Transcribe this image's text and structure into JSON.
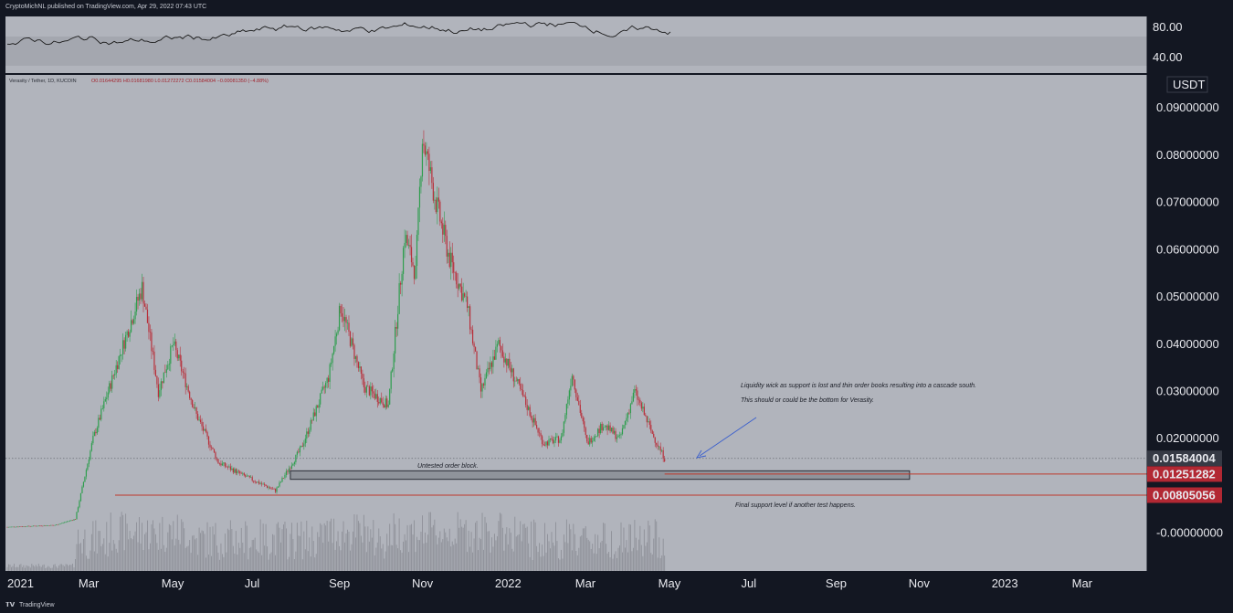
{
  "header": {
    "publisher": "CryptoMichNL published on TradingView.com, Apr 29, 2022 07:43 UTC"
  },
  "footer": {
    "brand": "TradingView"
  },
  "legend": {
    "symbol": "Verasity / Tether, 1D, KUCOIN",
    "ohlc": "O0.01644295  H0.01681980  L0.01272272  C0.01584004  −0.00081350 (−4.88%)"
  },
  "colors": {
    "background": "#b1b4bc",
    "frame": "#131722",
    "up": "#2e9e4e",
    "down": "#b8303b",
    "level_line": "#c0392b",
    "price_tag_dark": "#363a45",
    "price_tag_red": "#b22833",
    "volume": "#8e9098",
    "note_arrow": "#3a5fcd"
  },
  "rsi": {
    "ticks": [
      "80.00",
      "40.00"
    ]
  },
  "chart_data": {
    "type": "candlestick",
    "symbol": "Verasity / Tether",
    "interval": "1D",
    "exchange": "KUCOIN",
    "currency": "USDT",
    "ylim": [
      -0.008,
      0.097
    ],
    "y_ticks": [
      "0.09000000",
      "0.08000000",
      "0.07000000",
      "0.06000000",
      "0.05000000",
      "0.04000000",
      "0.03000000",
      "0.02000000",
      "-0.00000000"
    ],
    "x_ticks": [
      "2021",
      "Mar",
      "May",
      "Jul",
      "Sep",
      "Nov",
      "2022",
      "Mar",
      "May",
      "Jul",
      "Sep",
      "Nov",
      "2023",
      "Mar"
    ],
    "last_price": "0.01584004",
    "levels": [
      {
        "value": 0.01251282,
        "label": "0.01251282"
      },
      {
        "value": 0.00805056,
        "label": "0.00805056"
      }
    ],
    "order_block": {
      "low": 0.0114,
      "high": 0.0132,
      "label": "Untested order block."
    },
    "price_path": [
      {
        "date": "2021-01-01",
        "price": 0.0013
      },
      {
        "date": "2021-02-05",
        "price": 0.0017
      },
      {
        "date": "2021-02-20",
        "price": 0.003
      },
      {
        "date": "2021-03-05",
        "price": 0.02
      },
      {
        "date": "2021-03-25",
        "price": 0.038
      },
      {
        "date": "2021-04-10",
        "price": 0.052
      },
      {
        "date": "2021-04-22",
        "price": 0.03
      },
      {
        "date": "2021-05-03",
        "price": 0.04
      },
      {
        "date": "2021-05-20",
        "price": 0.025
      },
      {
        "date": "2021-06-05",
        "price": 0.015
      },
      {
        "date": "2021-06-25",
        "price": 0.012
      },
      {
        "date": "2021-07-17",
        "price": 0.009
      },
      {
        "date": "2021-08-05",
        "price": 0.018
      },
      {
        "date": "2021-08-25",
        "price": 0.033
      },
      {
        "date": "2021-09-03",
        "price": 0.048
      },
      {
        "date": "2021-09-20",
        "price": 0.031
      },
      {
        "date": "2021-10-08",
        "price": 0.027
      },
      {
        "date": "2021-10-20",
        "price": 0.063
      },
      {
        "date": "2021-10-28",
        "price": 0.055
      },
      {
        "date": "2021-11-02",
        "price": 0.084
      },
      {
        "date": "2021-11-12",
        "price": 0.07
      },
      {
        "date": "2021-11-22",
        "price": 0.058
      },
      {
        "date": "2021-12-05",
        "price": 0.048
      },
      {
        "date": "2021-12-15",
        "price": 0.03
      },
      {
        "date": "2021-12-28",
        "price": 0.04
      },
      {
        "date": "2022-01-10",
        "price": 0.032
      },
      {
        "date": "2022-01-30",
        "price": 0.019
      },
      {
        "date": "2022-02-12",
        "price": 0.02
      },
      {
        "date": "2022-02-20",
        "price": 0.034
      },
      {
        "date": "2022-03-03",
        "price": 0.019
      },
      {
        "date": "2022-03-15",
        "price": 0.023
      },
      {
        "date": "2022-03-27",
        "price": 0.02
      },
      {
        "date": "2022-04-07",
        "price": 0.03
      },
      {
        "date": "2022-04-20",
        "price": 0.021
      },
      {
        "date": "2022-04-29",
        "price": 0.0158
      }
    ],
    "annotations": [
      {
        "text": "Liquidity wick as support is lost and thin order books resulting into a cascade south."
      },
      {
        "text": "This should or could be the bottom for Verasity."
      },
      {
        "text": "Untested order block."
      },
      {
        "text": "Final support level if another test happens."
      }
    ]
  }
}
